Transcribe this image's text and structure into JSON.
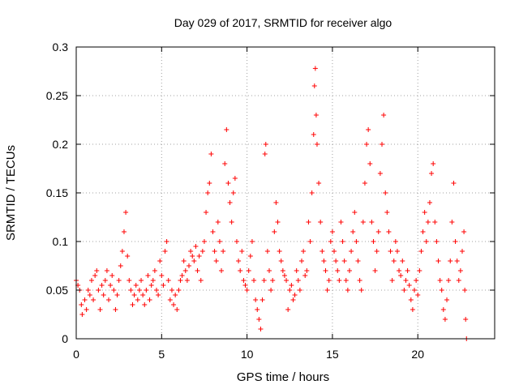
{
  "chart_data": {
    "type": "scatter",
    "title": "Day 029 of 2017, SRMTID for receiver algo",
    "xlabel": "GPS time / hours",
    "ylabel": "SRMTID / TECUs",
    "xlim": [
      0,
      24.5
    ],
    "ylim": [
      0,
      0.3
    ],
    "xticks": [
      0,
      5,
      10,
      15,
      20
    ],
    "xtick_labels": [
      "0",
      "5",
      "10",
      "15",
      "20"
    ],
    "yticks": [
      0,
      0.05,
      0.1,
      0.15,
      0.2,
      0.25,
      0.3
    ],
    "ytick_labels": [
      "0",
      "0.05",
      "0.1",
      "0.15",
      "0.2",
      "0.25",
      "0.3"
    ],
    "grid": true,
    "marker": "plus",
    "marker_color": "#ff0000",
    "series": [
      {
        "name": "SRMTID",
        "points": [
          [
            0.0,
            0.06
          ],
          [
            0.1,
            0.055
          ],
          [
            0.2,
            0.05
          ],
          [
            0.3,
            0.035
          ],
          [
            0.35,
            0.025
          ],
          [
            0.5,
            0.04
          ],
          [
            0.6,
            0.03
          ],
          [
            0.7,
            0.05
          ],
          [
            0.8,
            0.045
          ],
          [
            0.9,
            0.06
          ],
          [
            1.0,
            0.04
          ],
          [
            1.1,
            0.065
          ],
          [
            1.2,
            0.07
          ],
          [
            1.3,
            0.05
          ],
          [
            1.4,
            0.03
          ],
          [
            1.5,
            0.055
          ],
          [
            1.6,
            0.045
          ],
          [
            1.7,
            0.06
          ],
          [
            1.8,
            0.07
          ],
          [
            1.9,
            0.04
          ],
          [
            2.0,
            0.055
          ],
          [
            2.1,
            0.065
          ],
          [
            2.2,
            0.05
          ],
          [
            2.3,
            0.03
          ],
          [
            2.4,
            0.045
          ],
          [
            2.5,
            0.06
          ],
          [
            2.6,
            0.075
          ],
          [
            2.7,
            0.09
          ],
          [
            2.8,
            0.11
          ],
          [
            2.9,
            0.13
          ],
          [
            3.0,
            0.085
          ],
          [
            3.1,
            0.06
          ],
          [
            3.2,
            0.05
          ],
          [
            3.3,
            0.035
          ],
          [
            3.4,
            0.045
          ],
          [
            3.5,
            0.055
          ],
          [
            3.6,
            0.04
          ],
          [
            3.7,
            0.05
          ],
          [
            3.8,
            0.06
          ],
          [
            3.9,
            0.045
          ],
          [
            4.0,
            0.035
          ],
          [
            4.1,
            0.05
          ],
          [
            4.2,
            0.065
          ],
          [
            4.3,
            0.04
          ],
          [
            4.4,
            0.055
          ],
          [
            4.5,
            0.06
          ],
          [
            4.6,
            0.07
          ],
          [
            4.7,
            0.05
          ],
          [
            4.8,
            0.045
          ],
          [
            4.9,
            0.08
          ],
          [
            5.0,
            0.065
          ],
          [
            5.1,
            0.055
          ],
          [
            5.2,
            0.09
          ],
          [
            5.3,
            0.1
          ],
          [
            5.4,
            0.06
          ],
          [
            5.5,
            0.04
          ],
          [
            5.6,
            0.05
          ],
          [
            5.7,
            0.035
          ],
          [
            5.8,
            0.045
          ],
          [
            5.9,
            0.03
          ],
          [
            6.0,
            0.05
          ],
          [
            6.1,
            0.06
          ],
          [
            6.2,
            0.065
          ],
          [
            6.3,
            0.08
          ],
          [
            6.4,
            0.07
          ],
          [
            6.5,
            0.06
          ],
          [
            6.6,
            0.075
          ],
          [
            6.7,
            0.09
          ],
          [
            6.8,
            0.085
          ],
          [
            6.9,
            0.08
          ],
          [
            7.0,
            0.095
          ],
          [
            7.1,
            0.07
          ],
          [
            7.2,
            0.085
          ],
          [
            7.3,
            0.06
          ],
          [
            7.4,
            0.09
          ],
          [
            7.5,
            0.1
          ],
          [
            7.6,
            0.13
          ],
          [
            7.7,
            0.15
          ],
          [
            7.8,
            0.16
          ],
          [
            7.9,
            0.19
          ],
          [
            8.0,
            0.11
          ],
          [
            8.1,
            0.09
          ],
          [
            8.2,
            0.08
          ],
          [
            8.3,
            0.12
          ],
          [
            8.4,
            0.1
          ],
          [
            8.5,
            0.07
          ],
          [
            8.6,
            0.09
          ],
          [
            8.7,
            0.18
          ],
          [
            8.8,
            0.215
          ],
          [
            8.9,
            0.16
          ],
          [
            9.0,
            0.14
          ],
          [
            9.1,
            0.12
          ],
          [
            9.2,
            0.15
          ],
          [
            9.3,
            0.165
          ],
          [
            9.4,
            0.1
          ],
          [
            9.5,
            0.08
          ],
          [
            9.6,
            0.07
          ],
          [
            9.7,
            0.09
          ],
          [
            9.8,
            0.06
          ],
          [
            9.9,
            0.055
          ],
          [
            10.0,
            0.05
          ],
          [
            10.1,
            0.07
          ],
          [
            10.2,
            0.085
          ],
          [
            10.3,
            0.1
          ],
          [
            10.4,
            0.06
          ],
          [
            10.5,
            0.04
          ],
          [
            10.6,
            0.03
          ],
          [
            10.7,
            0.02
          ],
          [
            10.8,
            0.01
          ],
          [
            10.9,
            0.04
          ],
          [
            11.0,
            0.06
          ],
          [
            11.05,
            0.19
          ],
          [
            11.1,
            0.2
          ],
          [
            11.2,
            0.09
          ],
          [
            11.3,
            0.07
          ],
          [
            11.4,
            0.05
          ],
          [
            11.5,
            0.06
          ],
          [
            11.6,
            0.11
          ],
          [
            11.7,
            0.14
          ],
          [
            11.8,
            0.12
          ],
          [
            11.9,
            0.09
          ],
          [
            12.0,
            0.08
          ],
          [
            12.1,
            0.07
          ],
          [
            12.2,
            0.065
          ],
          [
            12.3,
            0.06
          ],
          [
            12.4,
            0.03
          ],
          [
            12.5,
            0.05
          ],
          [
            12.6,
            0.055
          ],
          [
            12.7,
            0.04
          ],
          [
            12.8,
            0.045
          ],
          [
            12.9,
            0.07
          ],
          [
            13.0,
            0.06
          ],
          [
            13.1,
            0.05
          ],
          [
            13.2,
            0.08
          ],
          [
            13.3,
            0.09
          ],
          [
            13.4,
            0.065
          ],
          [
            13.5,
            0.07
          ],
          [
            13.6,
            0.12
          ],
          [
            13.7,
            0.1
          ],
          [
            13.8,
            0.15
          ],
          [
            13.9,
            0.21
          ],
          [
            13.95,
            0.26
          ],
          [
            14.0,
            0.278
          ],
          [
            14.05,
            0.23
          ],
          [
            14.1,
            0.2
          ],
          [
            14.2,
            0.16
          ],
          [
            14.3,
            0.12
          ],
          [
            14.4,
            0.09
          ],
          [
            14.5,
            0.08
          ],
          [
            14.6,
            0.07
          ],
          [
            14.7,
            0.05
          ],
          [
            14.8,
            0.06
          ],
          [
            14.9,
            0.1
          ],
          [
            15.0,
            0.11
          ],
          [
            15.1,
            0.09
          ],
          [
            15.2,
            0.08
          ],
          [
            15.3,
            0.07
          ],
          [
            15.4,
            0.06
          ],
          [
            15.5,
            0.12
          ],
          [
            15.6,
            0.1
          ],
          [
            15.7,
            0.08
          ],
          [
            15.8,
            0.06
          ],
          [
            15.9,
            0.05
          ],
          [
            16.0,
            0.07
          ],
          [
            16.1,
            0.09
          ],
          [
            16.2,
            0.11
          ],
          [
            16.3,
            0.13
          ],
          [
            16.4,
            0.1
          ],
          [
            16.5,
            0.08
          ],
          [
            16.6,
            0.06
          ],
          [
            16.7,
            0.05
          ],
          [
            16.8,
            0.12
          ],
          [
            16.9,
            0.16
          ],
          [
            17.0,
            0.2
          ],
          [
            17.1,
            0.215
          ],
          [
            17.2,
            0.18
          ],
          [
            17.3,
            0.12
          ],
          [
            17.4,
            0.1
          ],
          [
            17.5,
            0.07
          ],
          [
            17.6,
            0.09
          ],
          [
            17.7,
            0.11
          ],
          [
            17.8,
            0.17
          ],
          [
            17.9,
            0.2
          ],
          [
            18.0,
            0.23
          ],
          [
            18.1,
            0.15
          ],
          [
            18.2,
            0.13
          ],
          [
            18.3,
            0.11
          ],
          [
            18.4,
            0.09
          ],
          [
            18.5,
            0.06
          ],
          [
            18.6,
            0.08
          ],
          [
            18.7,
            0.1
          ],
          [
            18.8,
            0.09
          ],
          [
            18.9,
            0.07
          ],
          [
            19.0,
            0.065
          ],
          [
            19.1,
            0.08
          ],
          [
            19.2,
            0.05
          ],
          [
            19.3,
            0.06
          ],
          [
            19.4,
            0.07
          ],
          [
            19.5,
            0.055
          ],
          [
            19.6,
            0.04
          ],
          [
            19.7,
            0.03
          ],
          [
            19.8,
            0.05
          ],
          [
            19.9,
            0.06
          ],
          [
            20.0,
            0.045
          ],
          [
            20.1,
            0.07
          ],
          [
            20.2,
            0.09
          ],
          [
            20.3,
            0.11
          ],
          [
            20.4,
            0.13
          ],
          [
            20.5,
            0.1
          ],
          [
            20.6,
            0.12
          ],
          [
            20.7,
            0.14
          ],
          [
            20.8,
            0.17
          ],
          [
            20.9,
            0.18
          ],
          [
            21.0,
            0.12
          ],
          [
            21.1,
            0.1
          ],
          [
            21.2,
            0.08
          ],
          [
            21.3,
            0.06
          ],
          [
            21.4,
            0.05
          ],
          [
            21.5,
            0.03
          ],
          [
            21.6,
            0.02
          ],
          [
            21.7,
            0.04
          ],
          [
            21.8,
            0.06
          ],
          [
            21.9,
            0.08
          ],
          [
            22.0,
            0.12
          ],
          [
            22.1,
            0.16
          ],
          [
            22.2,
            0.1
          ],
          [
            22.3,
            0.08
          ],
          [
            22.4,
            0.06
          ],
          [
            22.5,
            0.07
          ],
          [
            22.6,
            0.09
          ],
          [
            22.7,
            0.11
          ],
          [
            22.75,
            0.05
          ],
          [
            22.8,
            0.02
          ],
          [
            22.85,
            0.0
          ]
        ]
      }
    ]
  }
}
